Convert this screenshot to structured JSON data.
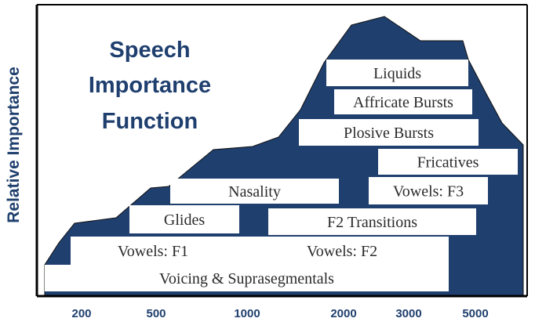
{
  "chart_data": {
    "type": "area",
    "title_lines": [
      "Speech",
      "Importance",
      "Function"
    ],
    "xlabel": "",
    "ylabel": "Relative Importance",
    "x_tick_labels": [
      "200",
      "500",
      "1000",
      "2000",
      "3000",
      "5000"
    ],
    "x_scale": "log",
    "grid": false,
    "colors": {
      "area": "#1f3f6e",
      "band": "#ffffff",
      "axis": "#000000",
      "label": "#1f3f6e"
    },
    "bands": [
      {
        "label": "Voicing & Suprasegmentals",
        "from": "170",
        "to": "4000"
      },
      {
        "label": "Vowels: F1",
        "from": "250",
        "to": "1000"
      },
      {
        "label": "Vowels: F2",
        "from": "1000",
        "to": "4000"
      },
      {
        "label": "Glides",
        "from": "400",
        "to": "950"
      },
      {
        "label": "F2 Transitions",
        "from": "1150",
        "to": "4500"
      },
      {
        "label": "Nasality",
        "from": "540",
        "to": "1900"
      },
      {
        "label": "Vowels: F3",
        "from": "2250",
        "to": "4500"
      },
      {
        "label": "Fricatives",
        "from": "2650",
        "to": "6300"
      },
      {
        "label": "Plosive Bursts",
        "from": "1550",
        "to": "5000"
      },
      {
        "label": "Affricate Bursts",
        "from": "1950",
        "to": "4700"
      },
      {
        "label": "Liquids",
        "from": "1800",
        "to": "4300"
      }
    ]
  }
}
